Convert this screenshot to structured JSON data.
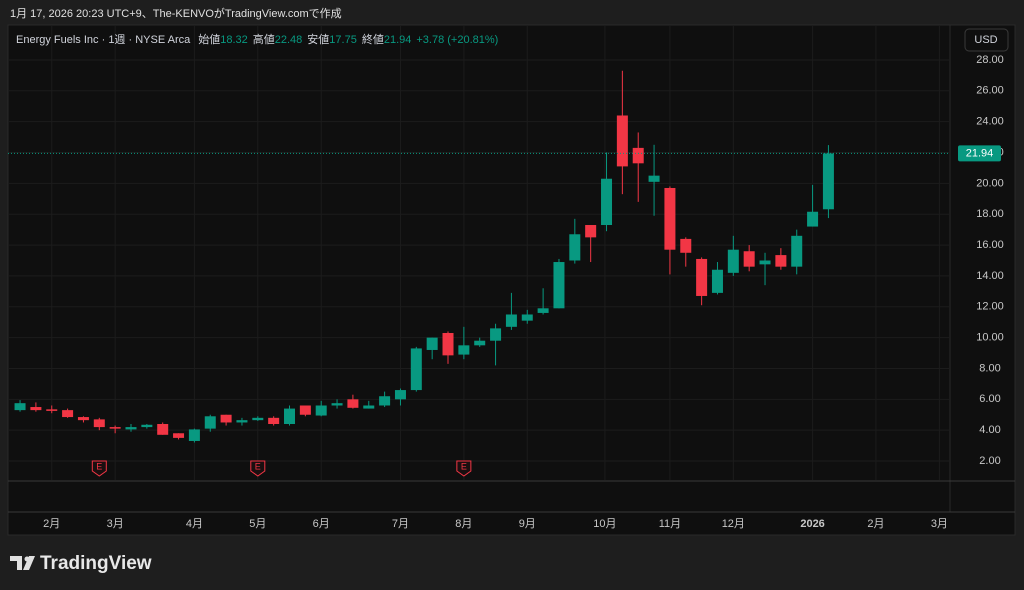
{
  "header": {
    "caption": "1月 17, 2026 20:23 UTC+9、The-KENVOがTradingView.comで作成"
  },
  "chart_data": {
    "type": "candlestick",
    "title": "Energy Fuels Inc · 1週 · NYSE Arca",
    "legend": {
      "open_label": "始値",
      "high_label": "高値",
      "low_label": "安値",
      "close_label": "終値",
      "change_text": "+3.78 (+20.81%)"
    },
    "currency": "USD",
    "up_color": "#089981",
    "down_color": "#f23645",
    "series": {
      "open": [
        5.3,
        5.5,
        5.35,
        5.3,
        4.85,
        4.7,
        4.2,
        4.05,
        4.2,
        4.4,
        3.8,
        3.3,
        4.1,
        5.0,
        4.5,
        4.65,
        4.8,
        4.4,
        5.6,
        4.95,
        5.6,
        6.0,
        5.4,
        5.6,
        6.0,
        6.6,
        9.2,
        10.3,
        8.9,
        9.5,
        9.8,
        10.7,
        11.1,
        11.6,
        11.9,
        15.0,
        17.3,
        17.3,
        24.4,
        22.3,
        20.1,
        19.7,
        16.4,
        15.1,
        12.9,
        14.2,
        15.6,
        14.75,
        15.35,
        14.6,
        17.2,
        18.32
      ],
      "high": [
        5.95,
        5.8,
        5.6,
        5.4,
        4.9,
        4.8,
        4.3,
        4.4,
        4.4,
        4.5,
        3.8,
        4.1,
        5.0,
        5.0,
        4.8,
        4.9,
        4.9,
        5.6,
        5.6,
        5.9,
        6.0,
        6.3,
        5.9,
        6.5,
        6.7,
        9.4,
        10.0,
        10.4,
        10.7,
        10.0,
        10.9,
        12.9,
        11.8,
        13.2,
        15.1,
        17.7,
        17.3,
        22.0,
        27.3,
        23.3,
        22.5,
        19.8,
        16.5,
        15.2,
        14.9,
        16.6,
        16.0,
        15.5,
        15.8,
        17.0,
        19.9,
        22.48
      ],
      "low": [
        5.2,
        5.2,
        5.1,
        4.8,
        4.5,
        4.0,
        3.8,
        3.9,
        4.1,
        3.7,
        3.4,
        3.2,
        3.9,
        4.3,
        4.3,
        4.6,
        4.3,
        4.3,
        4.9,
        4.9,
        5.4,
        5.4,
        5.4,
        5.5,
        5.6,
        6.5,
        8.6,
        8.3,
        8.6,
        9.4,
        8.2,
        10.5,
        10.9,
        11.5,
        11.9,
        14.8,
        14.9,
        16.9,
        19.3,
        18.8,
        17.9,
        14.1,
        14.6,
        12.1,
        12.8,
        14.0,
        14.3,
        13.4,
        14.4,
        14.1,
        17.2,
        17.75
      ],
      "close": [
        5.75,
        5.3,
        5.25,
        4.85,
        4.65,
        4.2,
        4.1,
        4.2,
        4.35,
        3.7,
        3.5,
        4.05,
        4.9,
        4.5,
        4.65,
        4.8,
        4.4,
        5.4,
        5.0,
        5.6,
        5.75,
        5.45,
        5.6,
        6.2,
        6.6,
        9.3,
        10.0,
        8.85,
        9.5,
        9.8,
        10.6,
        11.5,
        11.5,
        11.9,
        14.9,
        16.7,
        16.5,
        20.3,
        21.1,
        21.3,
        20.5,
        15.7,
        15.5,
        12.7,
        14.4,
        15.7,
        14.6,
        15.0,
        14.6,
        16.6,
        18.16,
        21.94
      ]
    },
    "xlim": [
      -0.76,
      58.67
    ],
    "xticks": [
      {
        "value": 2,
        "label": "2月"
      },
      {
        "value": 6,
        "label": "3月"
      },
      {
        "value": 11,
        "label": "4月"
      },
      {
        "value": 15,
        "label": "5月"
      },
      {
        "value": 19,
        "label": "6月"
      },
      {
        "value": 24,
        "label": "7月"
      },
      {
        "value": 28,
        "label": "8月"
      },
      {
        "value": 32,
        "label": "9月"
      },
      {
        "value": 36.9,
        "label": "10月"
      },
      {
        "value": 41,
        "label": "11月"
      },
      {
        "value": 45,
        "label": "12月"
      },
      {
        "value": 50,
        "label": "2026"
      },
      {
        "value": 54,
        "label": "2月"
      },
      {
        "value": 58,
        "label": "3月"
      }
    ],
    "ylim": [
      0.77,
      28.84
    ],
    "yticks": [
      {
        "value": 2,
        "label": "2.00"
      },
      {
        "value": 4,
        "label": "4.00"
      },
      {
        "value": 6,
        "label": "6.00"
      },
      {
        "value": 8,
        "label": "8.00"
      },
      {
        "value": 10,
        "label": "10.00"
      },
      {
        "value": 12,
        "label": "12.00"
      },
      {
        "value": 14,
        "label": "14.00"
      },
      {
        "value": 16,
        "label": "16.00"
      },
      {
        "value": 18,
        "label": "18.00"
      },
      {
        "value": 20,
        "label": "20.00"
      },
      {
        "value": 22,
        "label": "22.00"
      },
      {
        "value": 24,
        "label": "24.00"
      },
      {
        "value": 26,
        "label": "26.00"
      },
      {
        "value": 28,
        "label": "28.00"
      }
    ],
    "grid": true,
    "events": [
      {
        "x": 5,
        "label": "E"
      },
      {
        "x": 15,
        "label": "E"
      },
      {
        "x": 28,
        "label": "E"
      }
    ]
  },
  "footer": {
    "logo": "TradingView"
  }
}
